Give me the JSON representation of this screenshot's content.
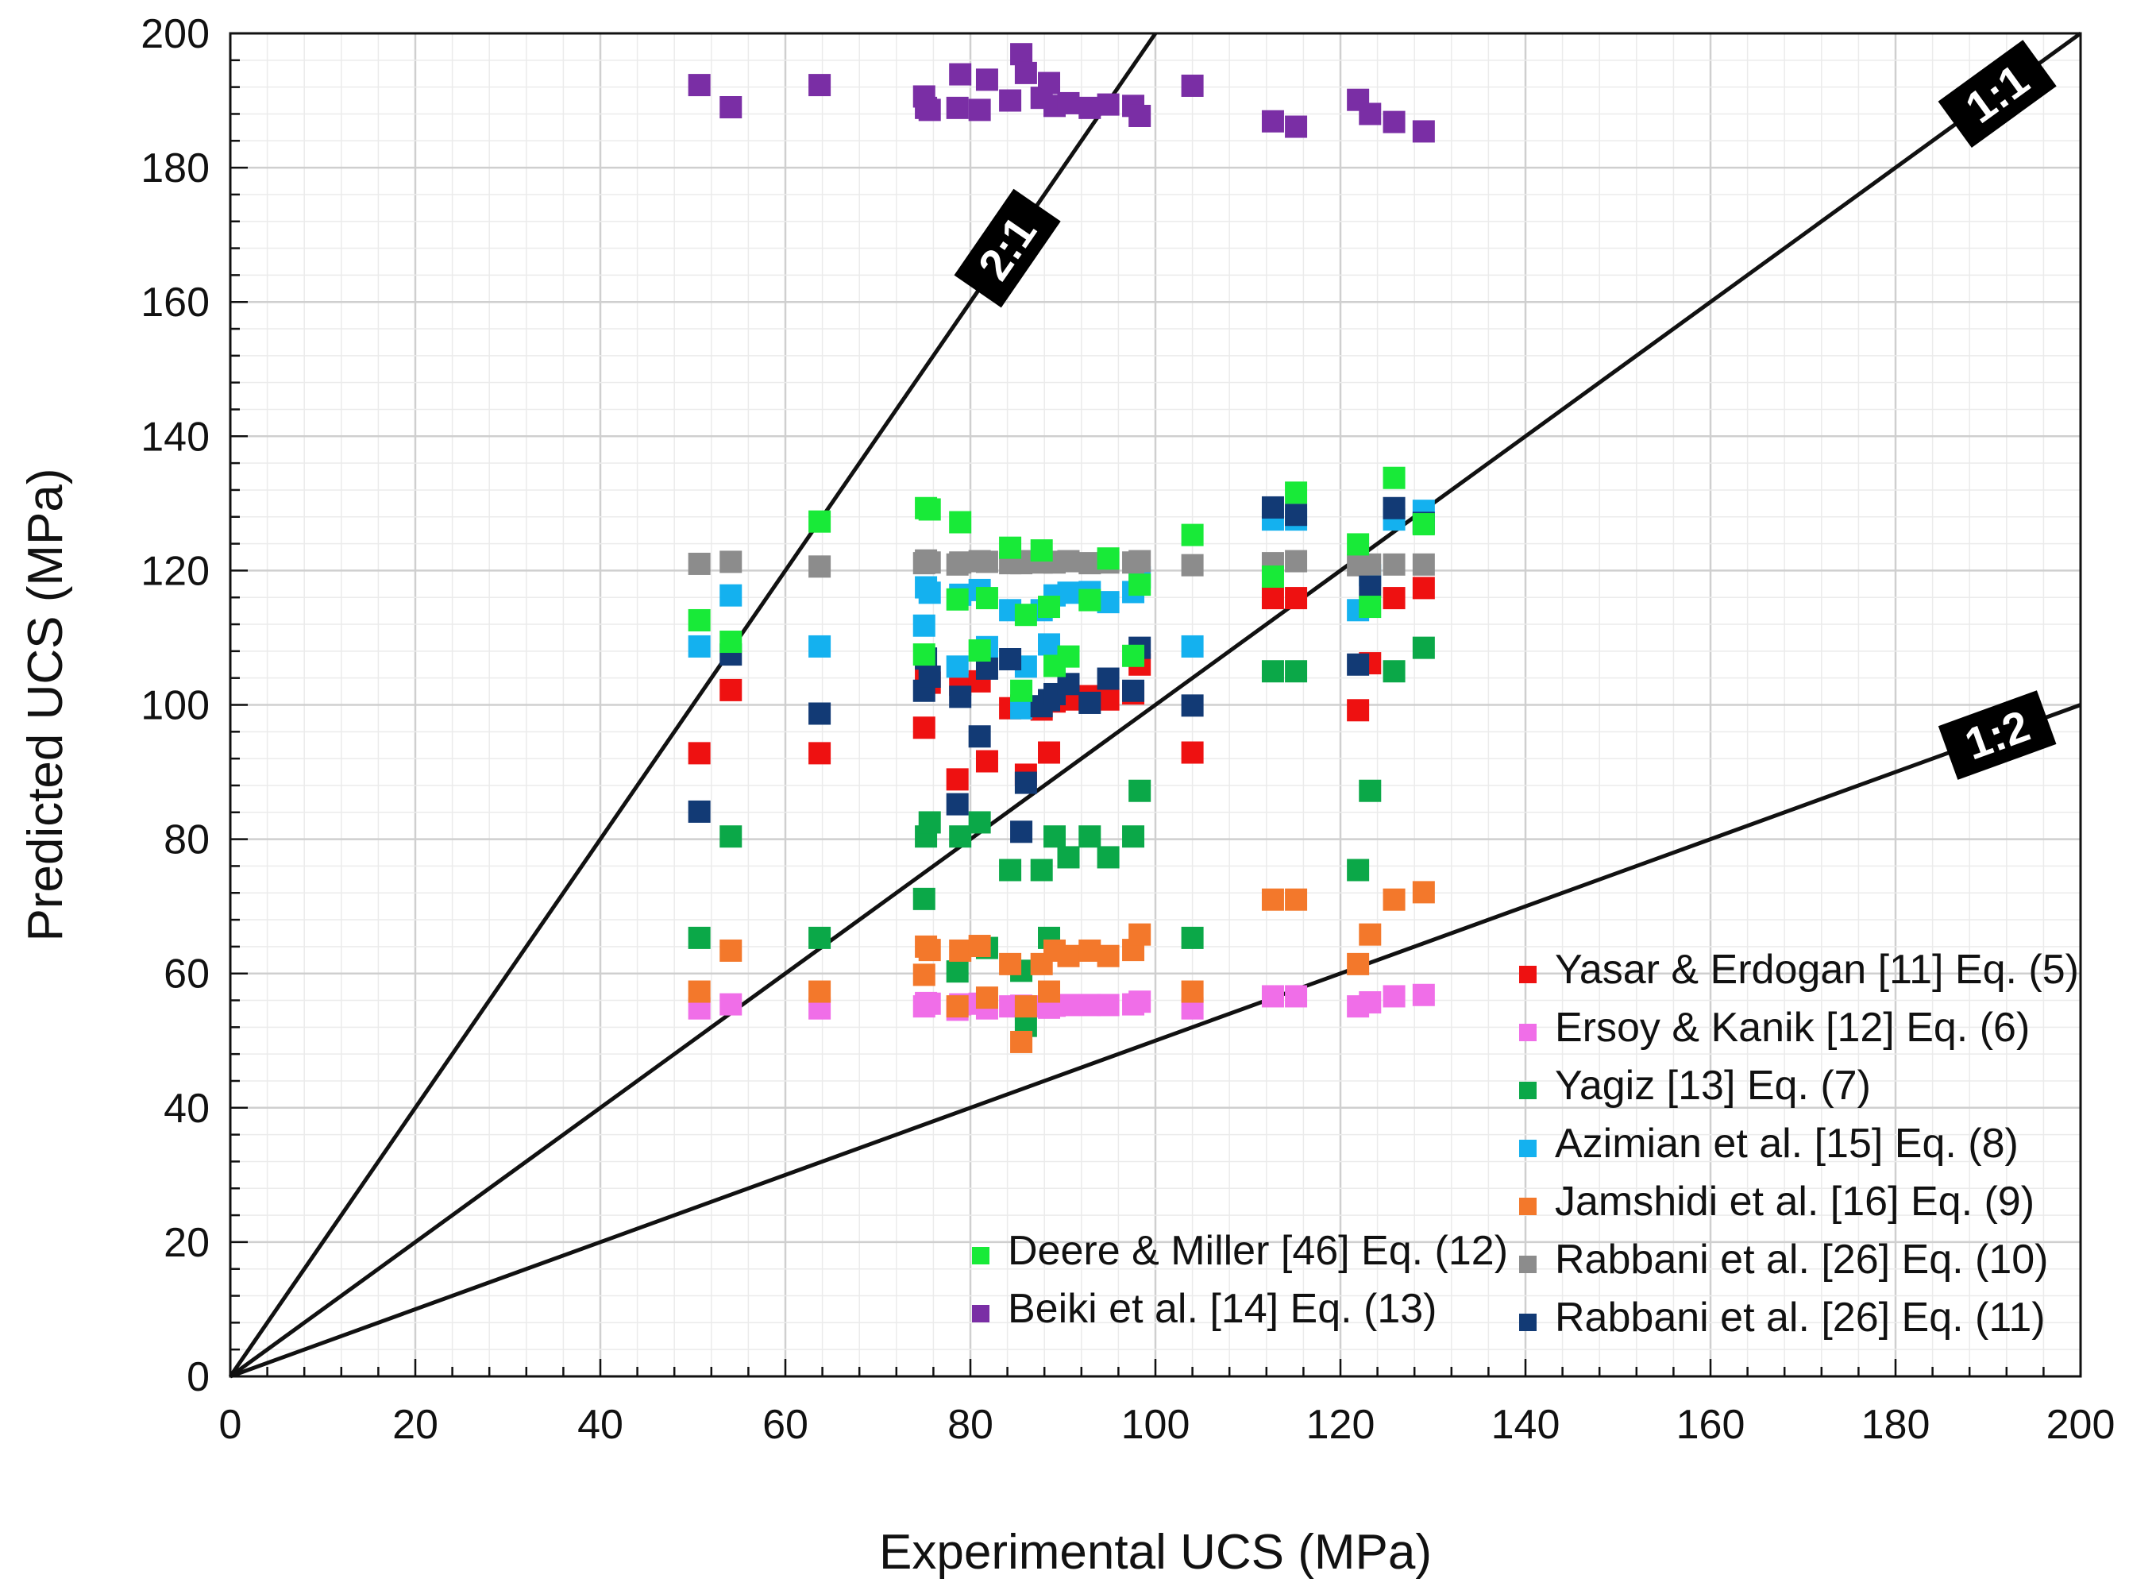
{
  "chart_data": {
    "type": "scatter",
    "xlabel": "Experimental UCS (MPa)",
    "ylabel": "Predicted UCS (MPa)",
    "xlim": [
      0,
      200
    ],
    "ylim": [
      0,
      200
    ],
    "x_ticks": [
      "0",
      "20",
      "40",
      "60",
      "80",
      "100",
      "120",
      "140",
      "160",
      "180",
      "200"
    ],
    "y_ticks": [
      "0",
      "20",
      "40",
      "60",
      "80",
      "100",
      "120",
      "140",
      "160",
      "180",
      "200"
    ],
    "grid": true,
    "reference_lines": [
      {
        "label": "2:1",
        "slope": 2,
        "label_at_x": 84
      },
      {
        "label": "1:1",
        "slope": 1,
        "label_at_x": 191
      },
      {
        "label": "1:2",
        "slope": 0.5,
        "label_at_x": 191
      }
    ],
    "experimental_x": [
      50.7,
      54.1,
      63.7,
      75.0,
      75.2,
      75.6,
      78.6,
      78.9,
      81.0,
      81.8,
      84.3,
      85.5,
      86.0,
      87.7,
      88.5,
      89.1,
      90.6,
      92.9,
      94.9,
      97.6,
      98.3,
      104.0,
      112.7,
      115.2,
      121.9,
      123.2,
      125.8,
      129.0
    ],
    "series": [
      {
        "name": "Yasar & Erdogan [11] Eq. (5)",
        "color": "#ee1111",
        "y": [
          92.8,
          102.2,
          92.8,
          96.6,
          104.3,
          103.3,
          88.9,
          103.0,
          103.5,
          91.6,
          99.5,
          99.9,
          89.6,
          99.3,
          92.9,
          100.5,
          100.8,
          101.3,
          100.8,
          101.7,
          106.0,
          92.9,
          115.9,
          115.9,
          99.2,
          106.2,
          115.9,
          117.4
        ]
      },
      {
        "name": "Ersoy & Kanik [12] Eq. (6)",
        "color": "#f06ee8",
        "y": [
          54.8,
          55.4,
          54.8,
          55.1,
          55.6,
          55.5,
          54.6,
          55.4,
          55.5,
          54.8,
          55.1,
          55.2,
          54.7,
          55.1,
          54.9,
          55.2,
          55.3,
          55.3,
          55.3,
          55.4,
          55.8,
          54.8,
          56.6,
          56.6,
          55.1,
          55.7,
          56.6,
          56.8
        ]
      },
      {
        "name": "Yagiz [13] Eq. (7)",
        "color": "#0ba848",
        "y": [
          65.3,
          80.4,
          65.3,
          71.1,
          80.4,
          82.5,
          60.3,
          80.4,
          82.5,
          63.8,
          75.4,
          60.4,
          52.2,
          75.4,
          65.3,
          80.4,
          77.3,
          80.4,
          77.3,
          80.4,
          87.2,
          65.3,
          105.0,
          105.0,
          75.4,
          87.2,
          105.0,
          108.5
        ]
      },
      {
        "name": "Azimian et al. [15] Eq. (8)",
        "color": "#14b1ef",
        "y": [
          108.7,
          116.3,
          108.7,
          111.8,
          117.5,
          116.7,
          105.7,
          116.4,
          117.1,
          108.6,
          114.1,
          99.5,
          105.7,
          114.1,
          109.0,
          116.3,
          116.7,
          116.8,
          115.3,
          116.8,
          119.0,
          108.7,
          127.6,
          127.6,
          114.1,
          119.3,
          127.6,
          128.9
        ]
      },
      {
        "name": "Jamshidi et al. [16] Eq. (9)",
        "color": "#f3782b",
        "y": [
          57.3,
          63.4,
          57.3,
          59.8,
          64.0,
          63.5,
          55.1,
          63.4,
          64.1,
          56.4,
          61.4,
          49.8,
          55.1,
          61.4,
          57.3,
          63.4,
          62.6,
          63.4,
          62.6,
          63.5,
          65.8,
          57.3,
          71.0,
          71.0,
          61.4,
          65.8,
          71.0,
          72.1
        ]
      },
      {
        "name": "Rabbani et al. [26] Eq. (10)",
        "color": "#8c8c8c",
        "y": [
          121.0,
          121.3,
          120.6,
          121.1,
          121.5,
          121.2,
          120.9,
          121.2,
          121.4,
          121.3,
          121.1,
          121.1,
          121.4,
          121.2,
          121.3,
          121.2,
          121.4,
          121.1,
          121.2,
          121.2,
          121.4,
          120.8,
          121.1,
          121.4,
          120.8,
          120.9,
          120.9,
          120.9
        ]
      },
      {
        "name": "Rabbani et al. [26] Eq. (11)",
        "color": "#123a75",
        "y": [
          84.1,
          107.5,
          98.7,
          102.1,
          106.9,
          104.2,
          85.2,
          101.2,
          95.3,
          105.4,
          106.8,
          81.1,
          88.4,
          99.8,
          100.7,
          101.6,
          103.1,
          100.3,
          103.9,
          102.1,
          108.5,
          99.9,
          129.4,
          128.3,
          106.0,
          117.6,
          129.3,
          127.1
        ]
      },
      {
        "name": "Deere & Miller [46] Eq. (12)",
        "color": "#18ea38",
        "y": [
          112.6,
          109.4,
          127.3,
          107.5,
          129.3,
          129.1,
          115.7,
          127.2,
          108.1,
          115.9,
          123.4,
          102.1,
          113.4,
          123.0,
          114.6,
          105.8,
          107.2,
          115.6,
          121.8,
          107.3,
          117.9,
          125.3,
          119.1,
          131.6,
          123.9,
          114.6,
          133.8,
          126.9
        ]
      },
      {
        "name": "Beiki et al. [14] Eq. (13)",
        "color": "#7a2ea5",
        "y": [
          192.3,
          189.0,
          192.3,
          190.6,
          188.9,
          188.6,
          188.9,
          193.9,
          188.6,
          193.1,
          190.0,
          196.9,
          194.1,
          190.4,
          192.6,
          189.2,
          189.6,
          188.9,
          189.4,
          189.2,
          187.7,
          192.2,
          186.9,
          186.1,
          190.1,
          188.0,
          186.8,
          185.4
        ]
      }
    ],
    "legend_left": {
      "placement": "bottom-center",
      "entries": [
        "Deere & Miller [46] Eq. (12)",
        "Beiki et al. [14] Eq. (13)"
      ]
    },
    "legend_right": {
      "placement": "bottom-right",
      "entries": [
        "Yasar & Erdogan [11] Eq. (5)",
        "Ersoy & Kanik [12] Eq. (6)",
        "Yagiz [13] Eq. (7)",
        "Azimian et al. [15] Eq. (8)",
        "Jamshidi et al. [16] Eq. (9)",
        "Rabbani et al. [26] Eq. (10)",
        "Rabbani et al. [26] Eq. (11)"
      ]
    }
  }
}
